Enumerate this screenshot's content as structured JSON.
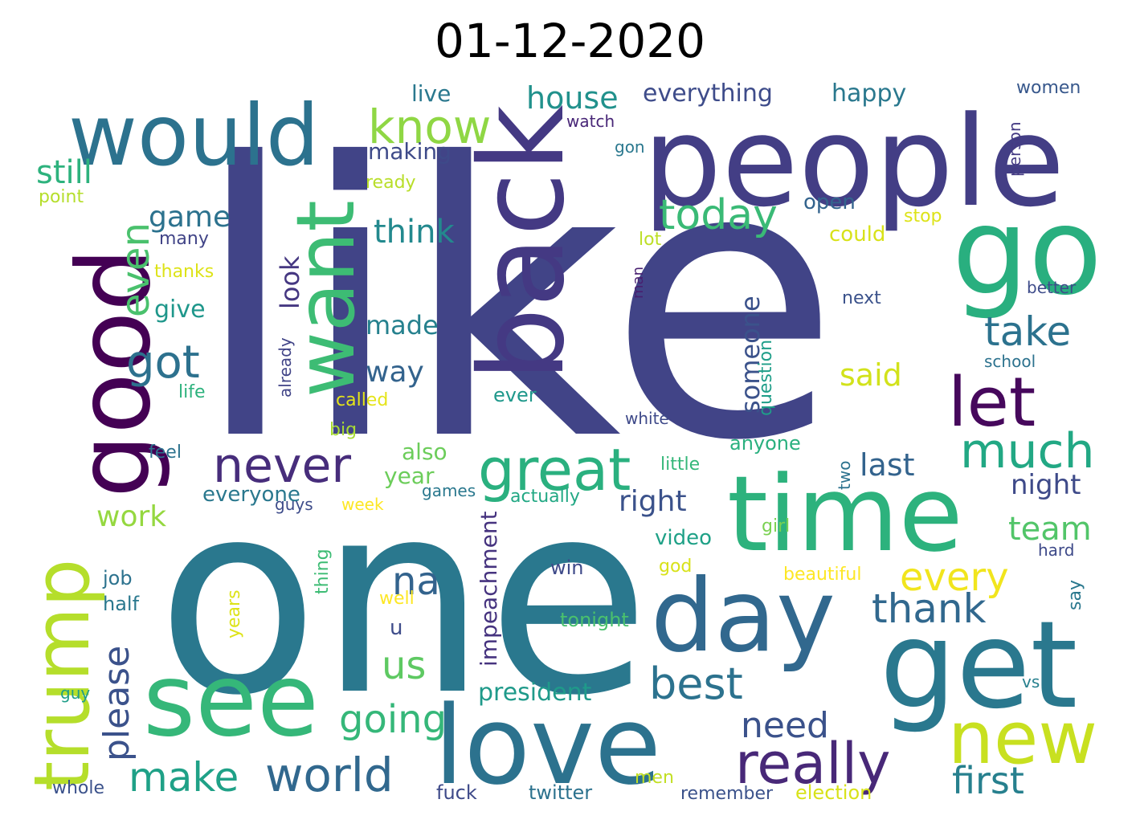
{
  "title": "01-12-2020",
  "words": [
    {
      "text": "like",
      "color": "#414487"
    },
    {
      "text": "one",
      "color": "#2a788e"
    },
    {
      "text": "people",
      "color": "#433e85"
    },
    {
      "text": "back",
      "color": "#443983"
    },
    {
      "text": "time",
      "color": "#2db27d"
    },
    {
      "text": "would",
      "color": "#2c728e"
    },
    {
      "text": "good",
      "color": "#440154"
    },
    {
      "text": "get",
      "color": "#2a788e"
    },
    {
      "text": "go",
      "color": "#29af7f"
    },
    {
      "text": "love",
      "color": "#2c728e"
    },
    {
      "text": "see",
      "color": "#35b779"
    },
    {
      "text": "day",
      "color": "#31688e"
    },
    {
      "text": "want",
      "color": "#3dbc74"
    },
    {
      "text": "trump",
      "color": "#b5de2b"
    },
    {
      "text": "new",
      "color": "#c8e020"
    },
    {
      "text": "let",
      "color": "#46085c"
    },
    {
      "text": "great",
      "color": "#2ab07f"
    },
    {
      "text": "really",
      "color": "#482878"
    },
    {
      "text": "never",
      "color": "#472d7b"
    },
    {
      "text": "world",
      "color": "#31688e"
    },
    {
      "text": "know",
      "color": "#8fd744"
    },
    {
      "text": "much",
      "color": "#22a884"
    },
    {
      "text": "make",
      "color": "#1fa187"
    },
    {
      "text": "today",
      "color": "#3aba76"
    },
    {
      "text": "got",
      "color": "#2d718e"
    },
    {
      "text": "even",
      "color": "#4ac16d"
    },
    {
      "text": "take",
      "color": "#2c728e"
    },
    {
      "text": "best",
      "color": "#2c728e"
    },
    {
      "text": "going",
      "color": "#35b779"
    },
    {
      "text": "every",
      "color": "#f1e51d"
    },
    {
      "text": "first",
      "color": "#27808e"
    },
    {
      "text": "thank",
      "color": "#31688e"
    },
    {
      "text": "us",
      "color": "#5ec962"
    },
    {
      "text": "need",
      "color": "#3b528b"
    },
    {
      "text": "na",
      "color": "#33638d"
    },
    {
      "text": "house",
      "color": "#21918c"
    },
    {
      "text": "think",
      "color": "#23898e"
    },
    {
      "text": "still",
      "color": "#2db27d"
    },
    {
      "text": "please",
      "color": "#3b528b"
    },
    {
      "text": "game",
      "color": "#2c728e"
    },
    {
      "text": "team",
      "color": "#52c569"
    },
    {
      "text": "look",
      "color": "#453781"
    },
    {
      "text": "last",
      "color": "#33638d"
    },
    {
      "text": "night",
      "color": "#3e4a89"
    },
    {
      "text": "said",
      "color": "#d2e21b"
    },
    {
      "text": "right",
      "color": "#3b528b"
    },
    {
      "text": "work",
      "color": "#95d840"
    },
    {
      "text": "way",
      "color": "#33638d"
    },
    {
      "text": "made",
      "color": "#26818e"
    },
    {
      "text": "someone",
      "color": "#3b528b"
    },
    {
      "text": "give",
      "color": "#1f978b"
    },
    {
      "text": "everything",
      "color": "#3e4c8a"
    },
    {
      "text": "happy",
      "color": "#2a788e"
    },
    {
      "text": "impeachment",
      "color": "#46337f"
    },
    {
      "text": "president",
      "color": "#1f9a8a"
    },
    {
      "text": "live",
      "color": "#2a788e"
    },
    {
      "text": "making",
      "color": "#3e4a89"
    },
    {
      "text": "also",
      "color": "#6ccd5a"
    },
    {
      "text": "year",
      "color": "#6ccd5a"
    },
    {
      "text": "everyone",
      "color": "#2a788e"
    },
    {
      "text": "open",
      "color": "#33638d"
    },
    {
      "text": "could",
      "color": "#d8e219"
    },
    {
      "text": "video",
      "color": "#1fa187"
    },
    {
      "text": "women",
      "color": "#38588c"
    },
    {
      "text": "person",
      "color": "#443a83"
    },
    {
      "text": "watch",
      "color": "#482677"
    },
    {
      "text": "gon",
      "color": "#2a788e"
    },
    {
      "text": "ready",
      "color": "#b8de29"
    },
    {
      "text": "point",
      "color": "#b5de2b"
    },
    {
      "text": "many",
      "color": "#414487"
    },
    {
      "text": "thanks",
      "color": "#dde318"
    },
    {
      "text": "life",
      "color": "#2db27d"
    },
    {
      "text": "already",
      "color": "#414487"
    },
    {
      "text": "called",
      "color": "#e5e419"
    },
    {
      "text": "big",
      "color": "#a8db34"
    },
    {
      "text": "feel",
      "color": "#2c728e"
    },
    {
      "text": "ever",
      "color": "#1f988b"
    },
    {
      "text": "question",
      "color": "#1f9e89"
    },
    {
      "text": "anyone",
      "color": "#2ab07f"
    },
    {
      "text": "white",
      "color": "#3e4989"
    },
    {
      "text": "little",
      "color": "#35b779"
    },
    {
      "text": "stop",
      "color": "#dde318"
    },
    {
      "text": "lot",
      "color": "#bddf26"
    },
    {
      "text": "man",
      "color": "#481f70"
    },
    {
      "text": "next",
      "color": "#3b528b"
    },
    {
      "text": "better",
      "color": "#3e4c8a"
    },
    {
      "text": "school",
      "color": "#2c728e"
    },
    {
      "text": "two",
      "color": "#2c728e"
    },
    {
      "text": "guys",
      "color": "#3e4c8a"
    },
    {
      "text": "week",
      "color": "#fde725"
    },
    {
      "text": "games",
      "color": "#2a788e"
    },
    {
      "text": "actually",
      "color": "#22a884"
    },
    {
      "text": "girl",
      "color": "#7ad151"
    },
    {
      "text": "hard",
      "color": "#3e4a89"
    },
    {
      "text": "job",
      "color": "#2c728e"
    },
    {
      "text": "half",
      "color": "#2a788e"
    },
    {
      "text": "thing",
      "color": "#3dbc74"
    },
    {
      "text": "years",
      "color": "#dde318"
    },
    {
      "text": "win",
      "color": "#3e4a89"
    },
    {
      "text": "god",
      "color": "#d8e219"
    },
    {
      "text": "beautiful",
      "color": "#fde725"
    },
    {
      "text": "well",
      "color": "#fde725"
    },
    {
      "text": "say",
      "color": "#2a788e"
    },
    {
      "text": "u",
      "color": "#3e4c8a"
    },
    {
      "text": "tonight",
      "color": "#4ac16d"
    },
    {
      "text": "guy",
      "color": "#1f9e89"
    },
    {
      "text": "vs",
      "color": "#27808e"
    },
    {
      "text": "whole",
      "color": "#3b528b"
    },
    {
      "text": "fuck",
      "color": "#3e4a89"
    },
    {
      "text": "twitter",
      "color": "#2c728e"
    },
    {
      "text": "men",
      "color": "#c2df23"
    },
    {
      "text": "remember",
      "color": "#3b528b"
    },
    {
      "text": "election",
      "color": "#d8e219"
    }
  ]
}
